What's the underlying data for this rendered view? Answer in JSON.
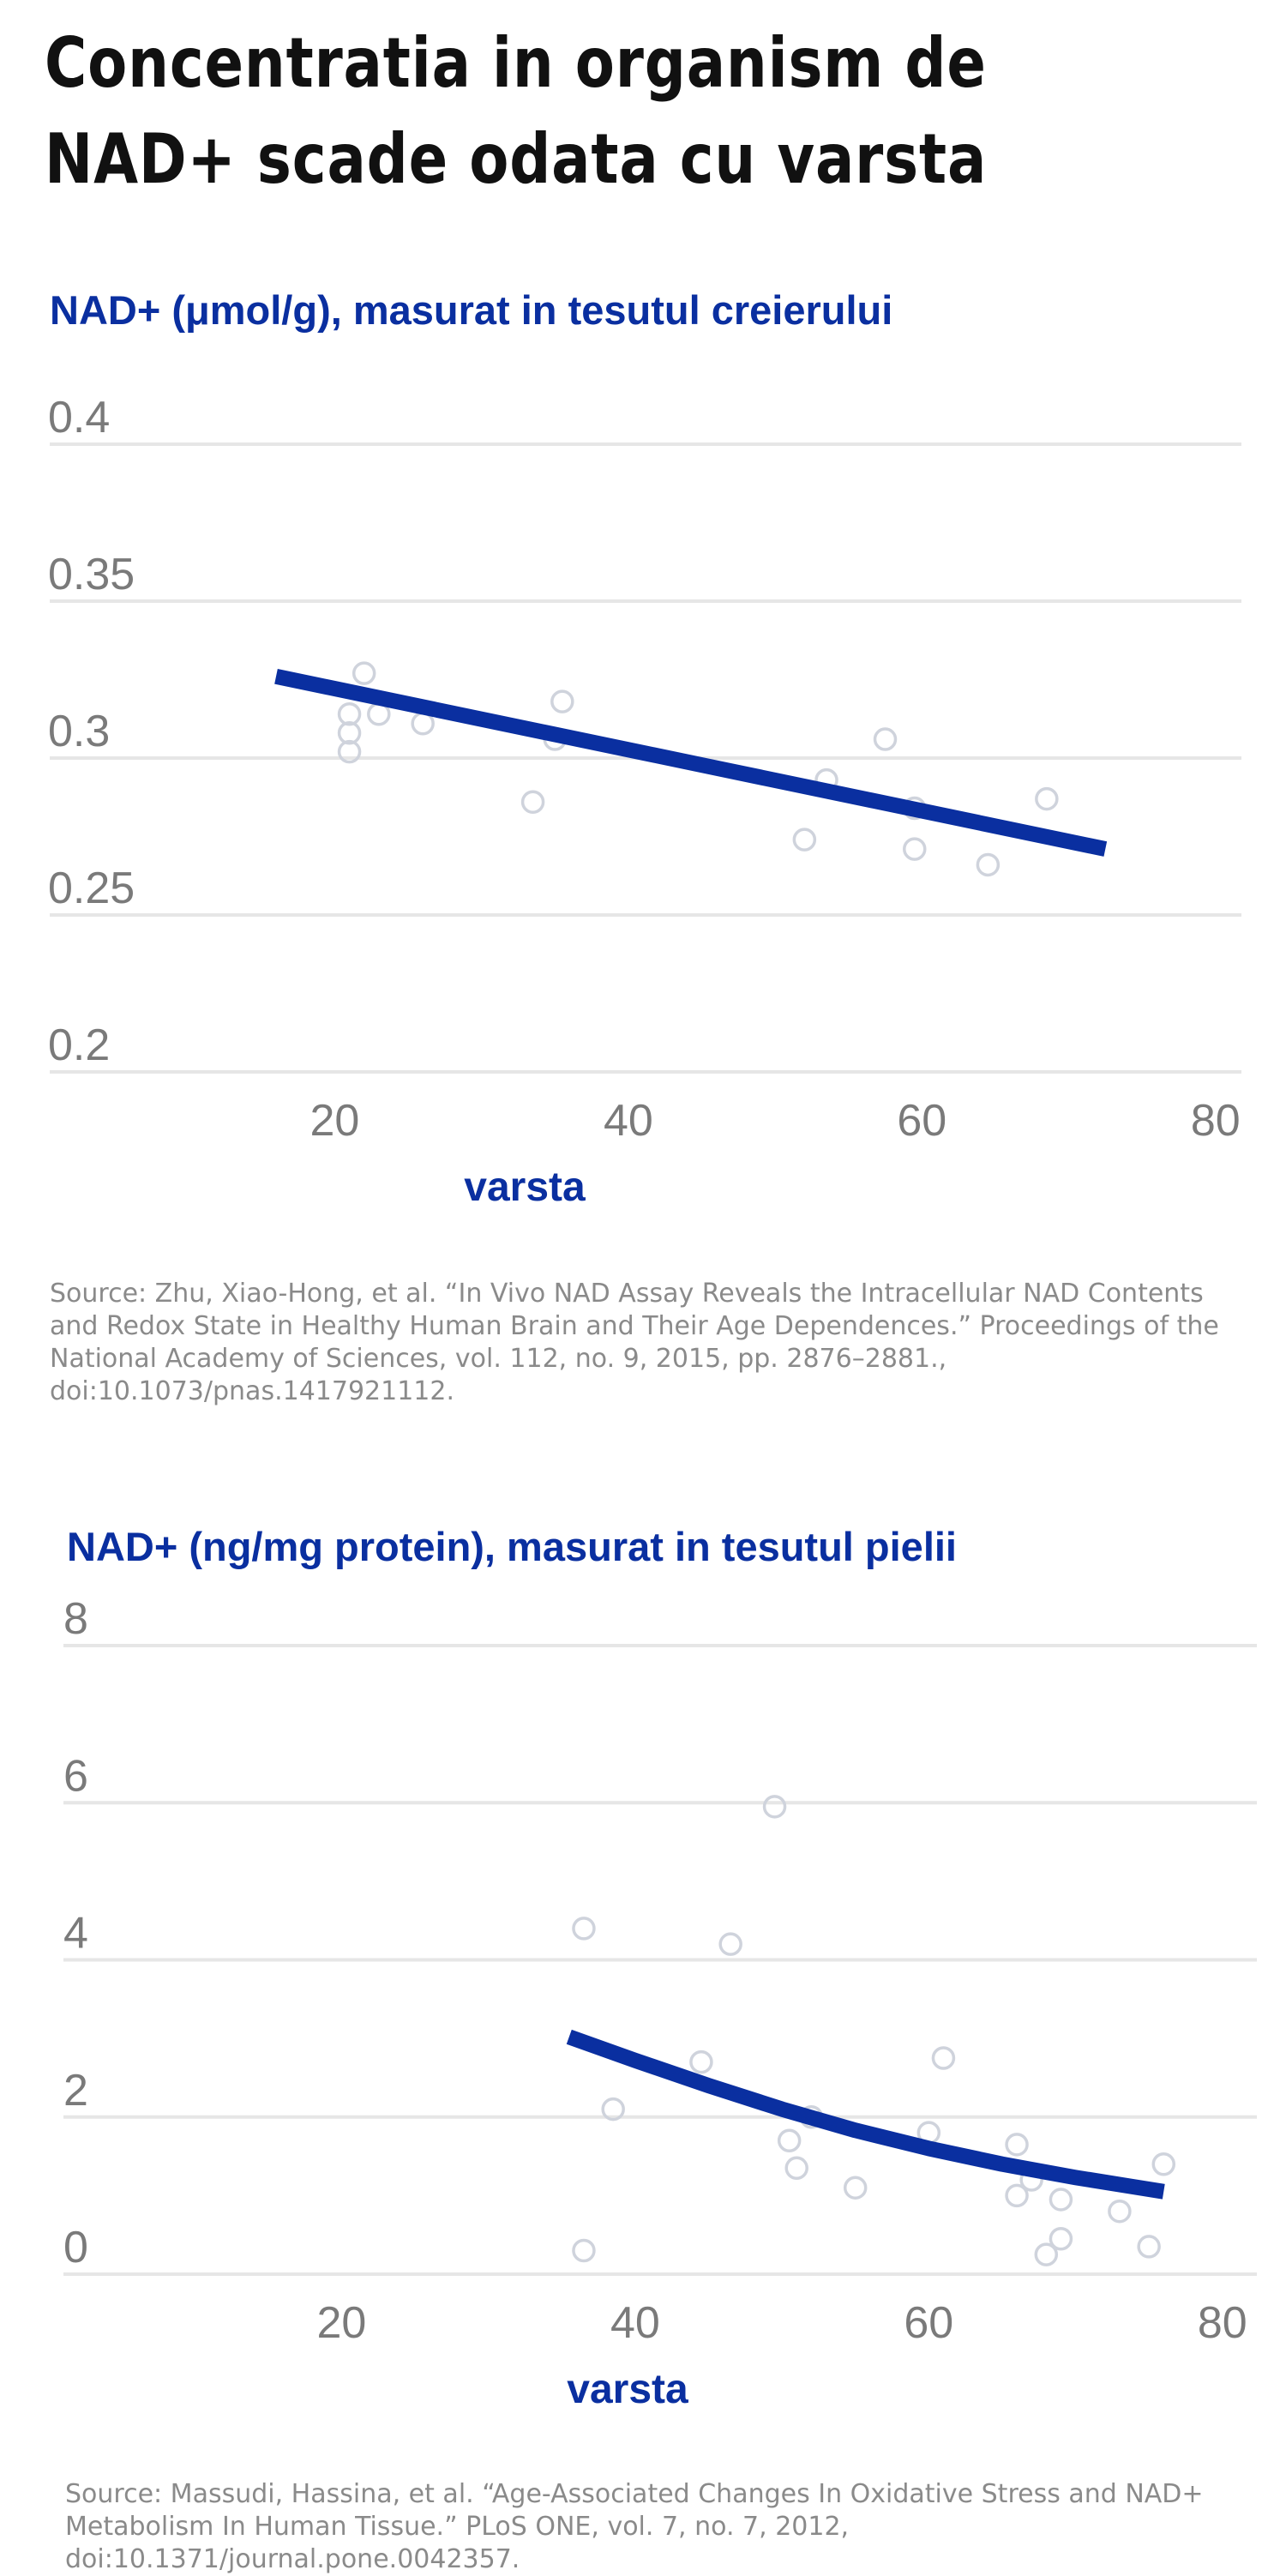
{
  "title": "Concentratia in organism de NAD+ scade odata cu varsta",
  "colors": {
    "accent": "#0a2fa0",
    "trend": "#0a2fa0",
    "points": "#cfd3dc",
    "grid": "#e6e6e6",
    "tick_text": "#7a7a7a",
    "source_text": "#8a8a8a"
  },
  "chart_data": [
    {
      "type": "scatter",
      "title": "",
      "ylabel": "NAD+ (μmol/g),  masurat in tesutul creierului",
      "xlabel": "varsta",
      "xlim": [
        0,
        82
      ],
      "ylim": [
        0.2,
        0.4
      ],
      "x_ticks": [
        20,
        40,
        60,
        80
      ],
      "y_ticks": [
        0.2,
        0.25,
        0.3,
        0.35,
        0.4
      ],
      "y_tick_labels": [
        "0.2",
        "0.25",
        "0.3",
        "0.35",
        "0.4"
      ],
      "grid": "horizontal",
      "points": [
        {
          "x": 21,
          "y": 0.314
        },
        {
          "x": 22,
          "y": 0.327
        },
        {
          "x": 23,
          "y": 0.314
        },
        {
          "x": 21,
          "y": 0.308
        },
        {
          "x": 21,
          "y": 0.302
        },
        {
          "x": 26,
          "y": 0.311
        },
        {
          "x": 33.5,
          "y": 0.286
        },
        {
          "x": 35.5,
          "y": 0.318
        },
        {
          "x": 35,
          "y": 0.306
        },
        {
          "x": 52,
          "y": 0.274
        },
        {
          "x": 53.5,
          "y": 0.293
        },
        {
          "x": 57.5,
          "y": 0.306
        },
        {
          "x": 59.5,
          "y": 0.284
        },
        {
          "x": 59.5,
          "y": 0.271
        },
        {
          "x": 64.5,
          "y": 0.266
        },
        {
          "x": 68.5,
          "y": 0.287
        }
      ],
      "trend": [
        {
          "x": 16,
          "y": 0.326
        },
        {
          "x": 72.5,
          "y": 0.271
        }
      ],
      "source": "Source: Zhu, Xiao-Hong, et al. “In Vivo NAD Assay Reveals the Intracellular NAD Contents and Redox State in Healthy Human Brain and Their Age Dependences.” Proceedings of the National Academy of Sciences, vol. 112, no. 9, 2015, pp. 2876–2881., doi:10.1073/pnas.1417921112."
    },
    {
      "type": "scatter",
      "title": "",
      "ylabel": "NAD+ (ng/mg protein), masurat in tesutul pielii",
      "xlabel": "varsta",
      "xlim": [
        0,
        82
      ],
      "ylim": [
        0,
        8
      ],
      "x_ticks": [
        20,
        40,
        60,
        80
      ],
      "y_ticks": [
        0,
        2,
        4,
        6,
        8
      ],
      "y_tick_labels": [
        "0",
        "2",
        "4",
        "6",
        "8"
      ],
      "grid": "horizontal",
      "points": [
        {
          "x": 36.5,
          "y": 4.4
        },
        {
          "x": 46.5,
          "y": 4.2
        },
        {
          "x": 49.5,
          "y": 5.95
        },
        {
          "x": 38.5,
          "y": 2.1
        },
        {
          "x": 36.5,
          "y": 0.3
        },
        {
          "x": 44.5,
          "y": 2.7
        },
        {
          "x": 50.5,
          "y": 1.7
        },
        {
          "x": 51,
          "y": 1.35
        },
        {
          "x": 52,
          "y": 2.0
        },
        {
          "x": 55,
          "y": 1.1
        },
        {
          "x": 60,
          "y": 1.8
        },
        {
          "x": 61,
          "y": 2.75
        },
        {
          "x": 66,
          "y": 1.65
        },
        {
          "x": 66,
          "y": 1.0
        },
        {
          "x": 67,
          "y": 1.2
        },
        {
          "x": 69,
          "y": 0.95
        },
        {
          "x": 69,
          "y": 0.45
        },
        {
          "x": 68,
          "y": 0.25
        },
        {
          "x": 73,
          "y": 0.8
        },
        {
          "x": 75,
          "y": 0.35
        },
        {
          "x": 76,
          "y": 1.4
        }
      ],
      "trend": [
        {
          "x": 35.5,
          "y": 3.02
        },
        {
          "x": 40,
          "y": 2.72
        },
        {
          "x": 45,
          "y": 2.4
        },
        {
          "x": 50,
          "y": 2.1
        },
        {
          "x": 55,
          "y": 1.83
        },
        {
          "x": 60,
          "y": 1.6
        },
        {
          "x": 65,
          "y": 1.4
        },
        {
          "x": 70,
          "y": 1.23
        },
        {
          "x": 76,
          "y": 1.05
        }
      ],
      "source": "Source: Massudi, Hassina, et al. “Age-Associated Changes In Oxidative Stress and NAD+ Metabolism In Human Tissue.” PLoS ONE, vol. 7, no. 7, 2012, doi:10.1371/journal.pone.0042357."
    }
  ]
}
